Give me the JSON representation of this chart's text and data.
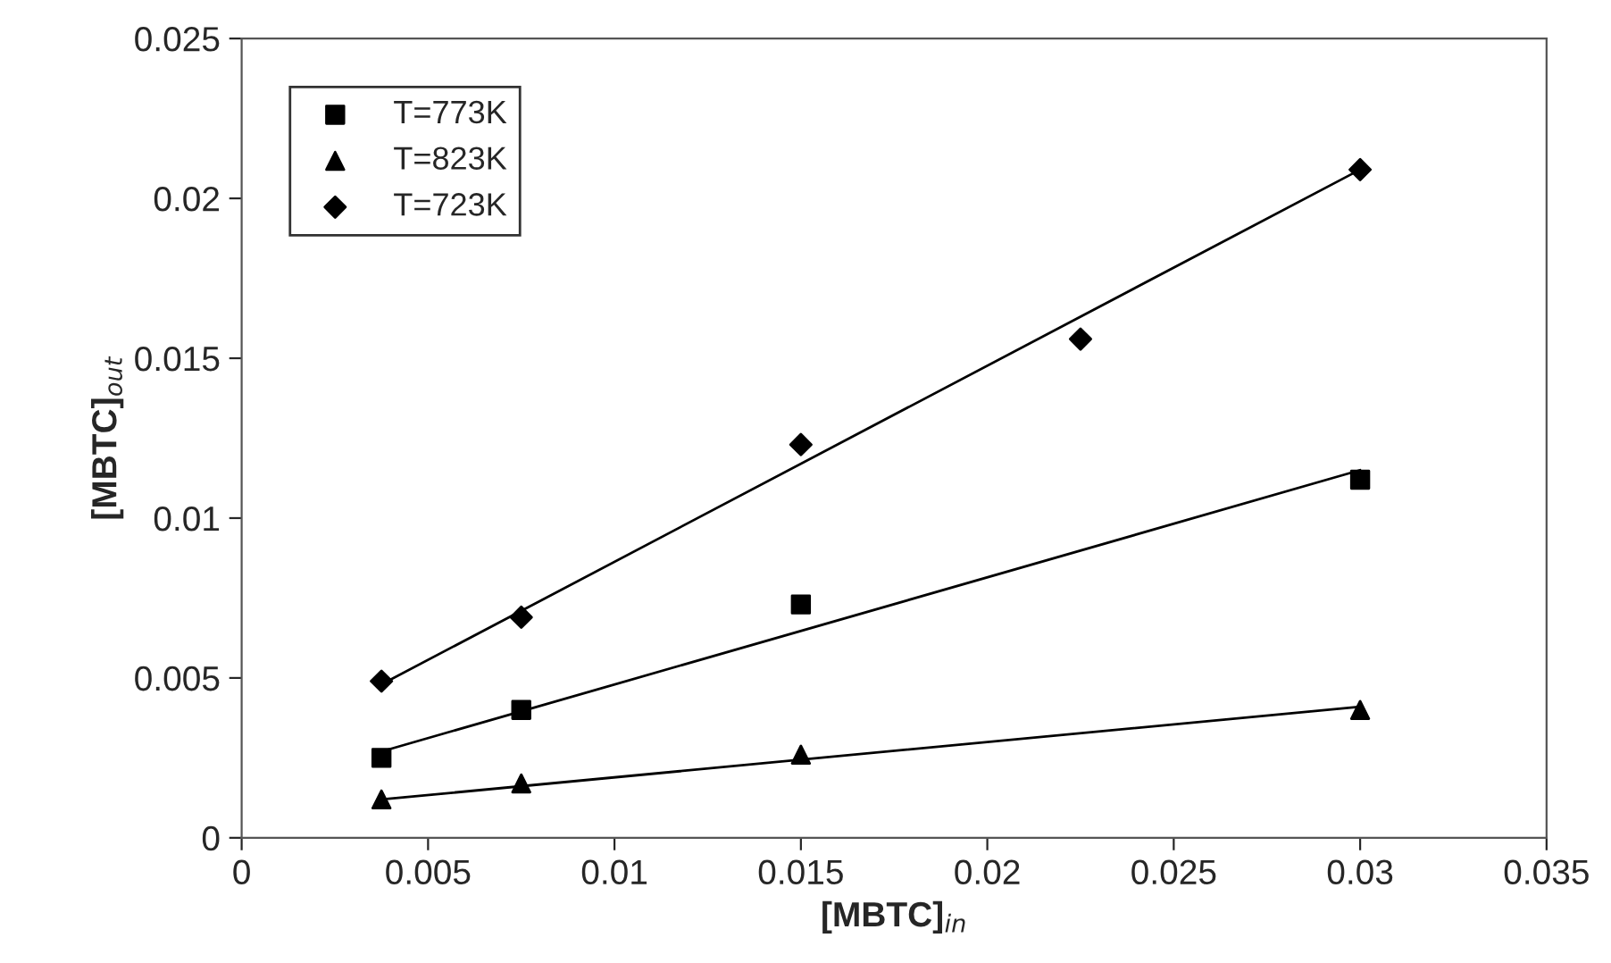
{
  "chart_data": {
    "type": "scatter",
    "xlabel": "[MBTC]$_{in}$",
    "ylabel": "[MBTC]$_{out}$",
    "xlim": [
      0,
      0.035
    ],
    "ylim": [
      0,
      0.025
    ],
    "xticks": [
      0,
      {
        "value": 0.005,
        "label": "0.005"
      },
      {
        "value": 0.01,
        "label": "0.01"
      },
      {
        "value": 0.015,
        "label": "0.015"
      },
      {
        "value": 0.02,
        "label": "0.02"
      },
      {
        "value": 0.025,
        "label": "0.025"
      },
      {
        "value": 0.03,
        "label": "0.03"
      },
      {
        "value": 0.035,
        "label": "0.035"
      }
    ],
    "yticks": [
      0,
      {
        "value": 0.005,
        "label": "0.005"
      },
      {
        "value": 0.01,
        "label": "0.01"
      },
      {
        "value": 0.015,
        "label": "0.015"
      },
      {
        "value": 0.02,
        "label": "0.02"
      },
      {
        "value": 0.025,
        "label": "0.025"
      }
    ],
    "grid": false,
    "legend": "top left",
    "series": [
      {
        "name": "T=773K",
        "marker": "square",
        "color": "#000000",
        "x": [
          0.00375,
          0.0075,
          0.015,
          0.03
        ],
        "values": [
          0.0025,
          0.004,
          0.0073,
          0.0112
        ]
      },
      {
        "name": "T=823K",
        "marker": "triangle",
        "color": "#000000",
        "x": [
          0.00375,
          0.0075,
          0.015,
          0.03
        ],
        "values": [
          0.0012,
          0.0017,
          0.0026,
          0.004
        ]
      },
      {
        "name": "T=723K",
        "marker": "diamond",
        "color": "#000000",
        "x": [
          0.00375,
          0.0075,
          0.015,
          0.0225,
          0.03
        ],
        "values": [
          0.0049,
          0.0069,
          0.0123,
          0.0156,
          0.0209
        ]
      },
      {
        "type": "line",
        "marker": "none",
        "color": "#000000",
        "x": [
          0.00375,
          0.03
        ],
        "values": [
          0.0027,
          0.0115
        ]
      },
      {
        "type": "line",
        "marker": "none",
        "color": "#000000",
        "x": [
          0.00375,
          0.03
        ],
        "values": [
          0.0012,
          0.0041
        ]
      },
      {
        "type": "line",
        "marker": "none",
        "color": "#000000",
        "x": [
          0.00375,
          0.03
        ],
        "values": [
          0.0048,
          0.0209
        ]
      }
    ]
  }
}
